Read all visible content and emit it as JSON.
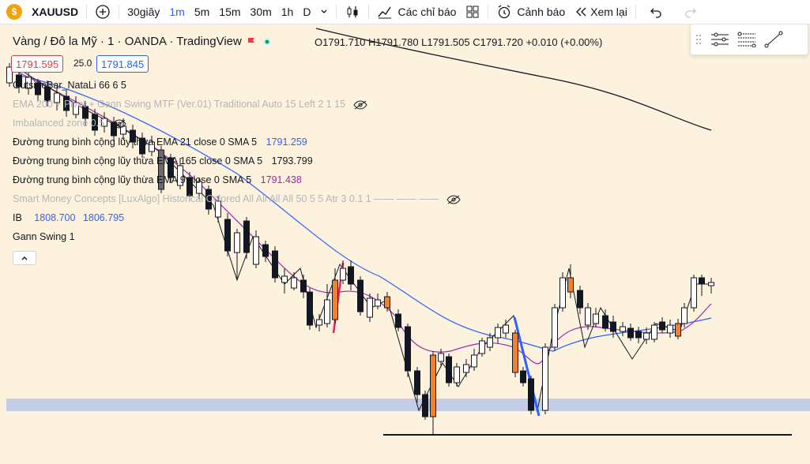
{
  "toolbar": {
    "symbol": "XAUUSD",
    "timeframes": [
      "30giây",
      "1m",
      "5m",
      "15m",
      "30m",
      "1h",
      "D"
    ],
    "active_timeframe": "1m",
    "indicators_label": "Các chỉ báo",
    "alert_label": "Cảnh báo",
    "replay_label": "Xem lại"
  },
  "chart": {
    "title": "Vàng / Đô la Mỹ · 1 · OANDA · TradingView",
    "ohlc": "O1791.710 H1791.780 L1791.505 C1791.720 +0.010 (+0.00%)",
    "bid": "1791.595",
    "spread": "25.0",
    "ask": "1791.845"
  },
  "indicators": {
    "outsidebar": "OutsideBar_NataLi 66 6 5",
    "ema_pivot": "EMA 200 + Pivot + Gann Swing MTF (Ver.01) Traditional Auto 15 Left 2 1 15",
    "imbalanced": "Imbalanced zone 0.5",
    "ema21_label": "Đường trung bình cộng lũy thừa EMA 21 close 0 SMA 5",
    "ema21_value": "1791.259",
    "ema165_label": "Đường trung bình cộng lũy thừa EMA 165 close 0 SMA 5",
    "ema165_value": "1793.799",
    "ema9_label": "Đường trung bình cộng lũy thừa EMA 9 close 0 SMA 5",
    "ema9_value": "1791.438",
    "smc": "Smart Money Concepts [LuxAlgo] Historical Colored All All All All 50 5 5 Atr 3 0.1 1 —— —— ——",
    "ib_label": "IB",
    "ib_value1": "1808.700",
    "ib_value2": "1806.795",
    "gann": "Gann Swing 1"
  },
  "colors": {
    "background": "#fdf2de",
    "accent": "#2962ff",
    "bid_border": "#e04040",
    "ema21": "#2962ff",
    "ema9": "#9c27b0",
    "zone": "#c5cde6"
  }
}
